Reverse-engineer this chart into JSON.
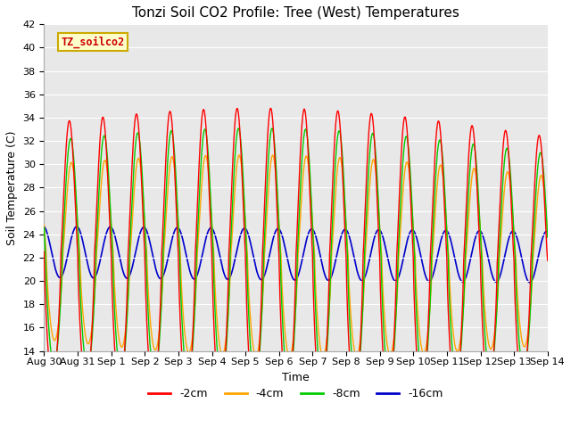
{
  "title": "Tonzi Soil CO2 Profile: Tree (West) Temperatures",
  "xlabel": "Time",
  "ylabel": "Soil Temperature (C)",
  "ylim": [
    14,
    42
  ],
  "yticks": [
    14,
    16,
    18,
    20,
    22,
    24,
    26,
    28,
    30,
    32,
    34,
    36,
    38,
    40,
    42
  ],
  "legend_label": "TZ_soilco2",
  "x_tick_labels": [
    "Aug 30",
    "Aug 31",
    "Sep 1",
    "Sep 2",
    "Sep 3",
    "Sep 4",
    "Sep 5",
    "Sep 6",
    "Sep 7",
    "Sep 8",
    "Sep 9",
    "Sep 10",
    "Sep 11",
    "Sep 12",
    "Sep 13",
    "Sep 14"
  ],
  "line_labels": [
    "-2cm",
    "-4cm",
    "-8cm",
    "-16cm"
  ],
  "line_colors": [
    "#ff0000",
    "#ffa500",
    "#00cc00",
    "#0000cc"
  ],
  "background_color": "#e8e8e8",
  "title_fontsize": 11,
  "axis_fontsize": 9,
  "tick_fontsize": 8
}
